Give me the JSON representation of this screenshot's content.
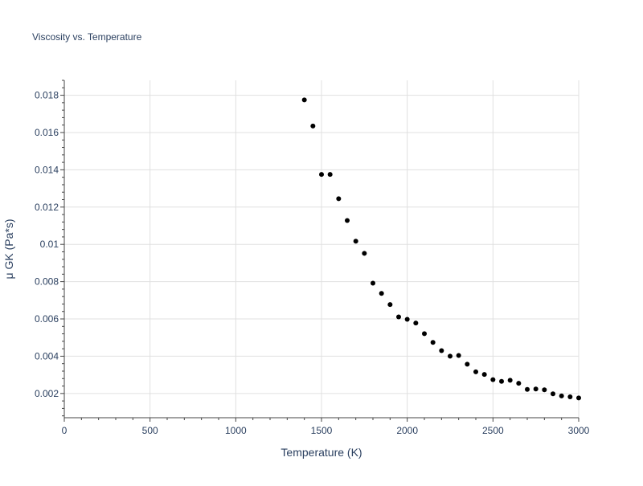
{
  "chart_data": {
    "type": "scatter",
    "title": "Viscosity vs. Temperature",
    "xlabel": "Temperature (K)",
    "ylabel": "μ GK (Pa*s)",
    "xlim": [
      0,
      3000
    ],
    "ylim": [
      0.0007,
      0.0188
    ],
    "x_ticks": [
      0,
      500,
      1000,
      1500,
      2000,
      2500,
      3000
    ],
    "x_tick_labels": [
      "0",
      "500",
      "1000",
      "1500",
      "2000",
      "2500",
      "3000"
    ],
    "y_ticks": [
      0.002,
      0.004,
      0.006,
      0.008,
      0.01,
      0.012,
      0.014,
      0.016,
      0.018
    ],
    "y_tick_labels": [
      "0.002",
      "0.004",
      "0.006",
      "0.008",
      "0.01",
      "0.012",
      "0.014",
      "0.016",
      "0.018"
    ],
    "grid": true,
    "marker_color": "#000000",
    "series": [
      {
        "x": [
          1400,
          1450,
          1500,
          1550,
          1600,
          1650,
          1700,
          1750,
          1800,
          1850,
          1900,
          1950,
          2000,
          2050,
          2100,
          2150,
          2200,
          2250,
          2300,
          2350,
          2400,
          2450,
          2500,
          2550,
          2600,
          2650,
          2700,
          2750,
          2800,
          2850,
          2900,
          2950,
          3000
        ],
        "y": [
          0.01775,
          0.01635,
          0.01375,
          0.01375,
          0.01245,
          0.01128,
          0.01017,
          0.00952,
          0.00792,
          0.00737,
          0.00677,
          0.00611,
          0.00598,
          0.00578,
          0.00521,
          0.00474,
          0.0043,
          0.004,
          0.00404,
          0.00357,
          0.00316,
          0.00302,
          0.00274,
          0.00265,
          0.00271,
          0.00255,
          0.00222,
          0.00224,
          0.0022,
          0.00198,
          0.00187,
          0.00182,
          0.00176
        ]
      }
    ]
  }
}
